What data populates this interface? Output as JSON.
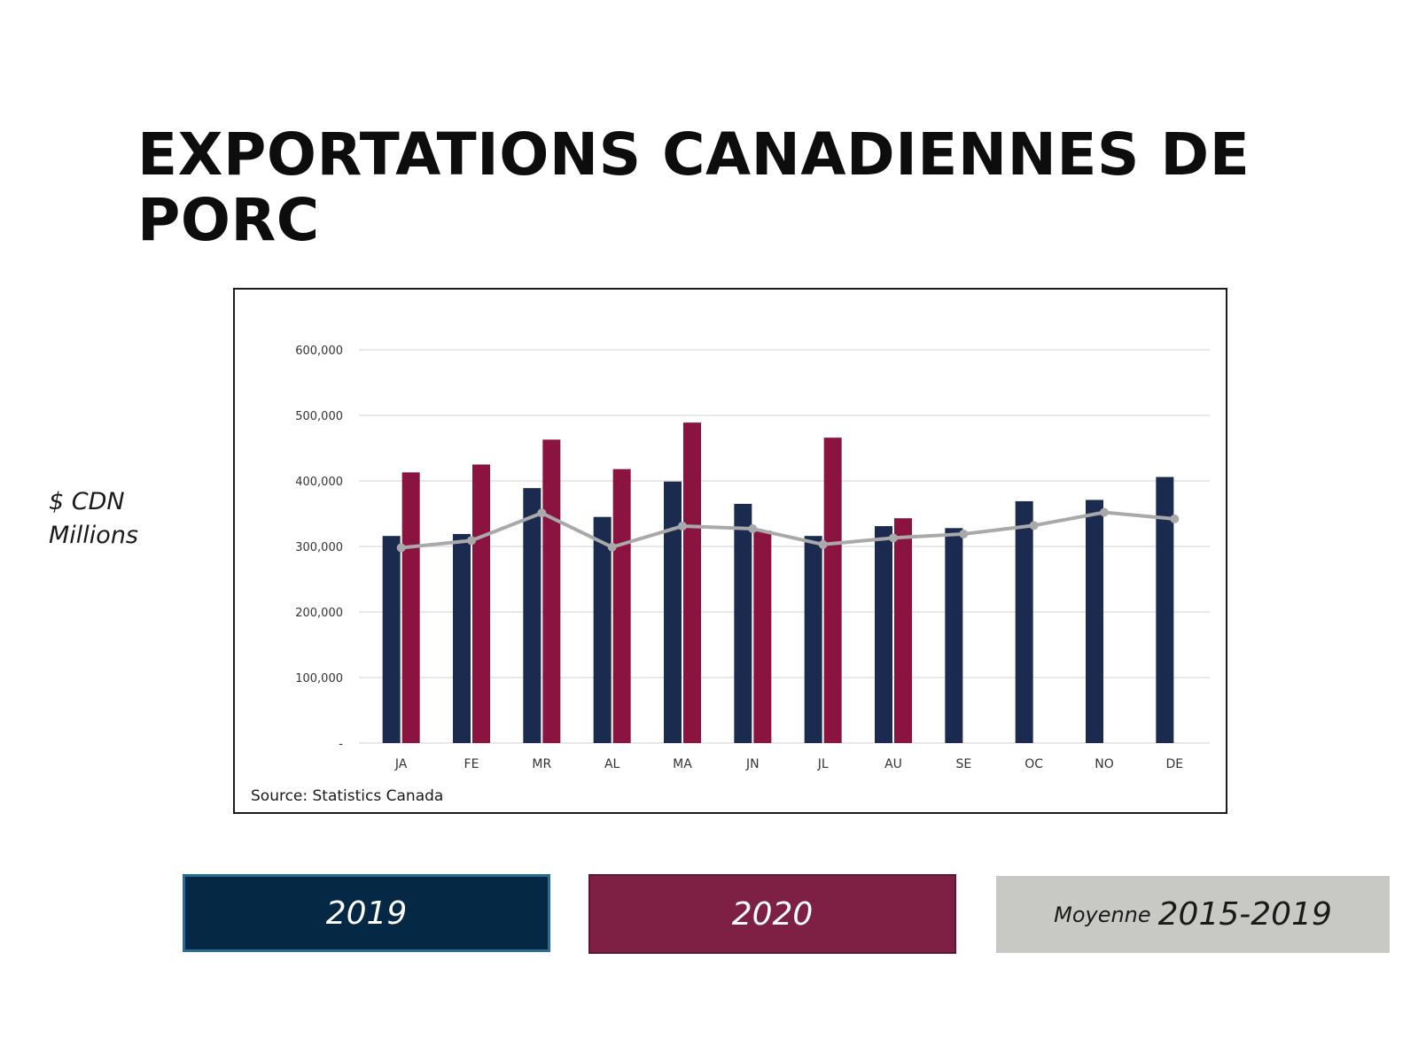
{
  "page": {
    "title": "EXPORTATIONS CANADIENNES DE PORC",
    "ylabel_line1": "$ CDN",
    "ylabel_line2": "Millions",
    "source": "Source: Statistics Canada"
  },
  "legend": {
    "series_2019": "2019",
    "series_2020": "2020",
    "avg_prefix": "Moyenne",
    "avg_range": "2015-2019"
  },
  "colors": {
    "series_2019": "#1b2a4f",
    "series_2020": "#8b1340",
    "average": "#a9a9a9",
    "gridline": "#d9d9d9"
  },
  "chart_data": {
    "type": "bar",
    "categories": [
      "JA",
      "FE",
      "MR",
      "AL",
      "MA",
      "JN",
      "JL",
      "AU",
      "SE",
      "OC",
      "NO",
      "DE"
    ],
    "series": [
      {
        "name": "2019",
        "type": "bar",
        "values": [
          316000,
          319000,
          389000,
          345000,
          399000,
          365000,
          316000,
          331000,
          328000,
          369000,
          371000,
          406000
        ]
      },
      {
        "name": "2020",
        "type": "bar",
        "values": [
          413000,
          425000,
          463000,
          418000,
          489000,
          324000,
          466000,
          343000,
          null,
          null,
          null,
          null
        ]
      },
      {
        "name": "Moyenne 2015-2019",
        "type": "line",
        "values": [
          298000,
          309000,
          351000,
          299000,
          331000,
          327000,
          303000,
          313000,
          319000,
          332000,
          352000,
          342000
        ]
      }
    ],
    "yticks": [
      "-",
      "100,000",
      "200,000",
      "300,000",
      "400,000",
      "500,000",
      "600,000"
    ],
    "ylim": [
      0,
      600000
    ],
    "grid": true,
    "legend_position": "bottom"
  }
}
